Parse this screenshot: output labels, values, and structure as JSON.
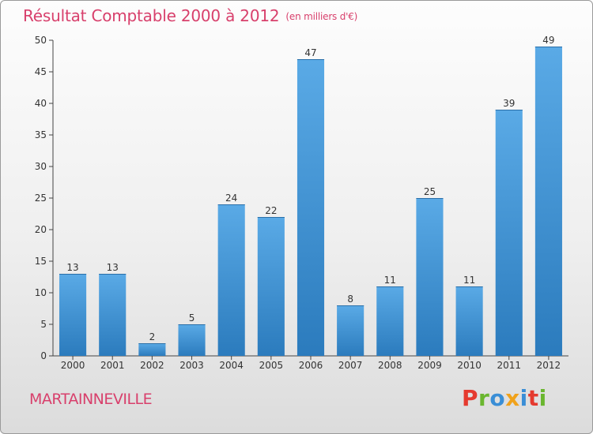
{
  "header": {
    "title": "Résultat Comptable 2000 à 2012",
    "unit": "(en milliers d'€)"
  },
  "footer": {
    "town": "MARTAINNEVILLE",
    "logo_letters": [
      "P",
      "r",
      "o",
      "x",
      "i",
      "t",
      "i"
    ],
    "logo_colors": [
      "#e53a2f",
      "#6ab62f",
      "#3a8ed6",
      "#f0a21b",
      "#3a8ed6",
      "#e53a2f",
      "#6ab62f"
    ]
  },
  "colors": {
    "title": "#d8406c",
    "bar_light": "#5aaae6",
    "bar_dark": "#2b7bbd"
  },
  "chart_data": {
    "type": "bar",
    "title": "Résultat Comptable 2000 à 2012",
    "subtitle": "(en milliers d'€)",
    "xlabel": "",
    "ylabel": "",
    "categories": [
      "2000",
      "2001",
      "2002",
      "2003",
      "2004",
      "2005",
      "2006",
      "2007",
      "2008",
      "2009",
      "2010",
      "2011",
      "2012"
    ],
    "values": [
      13,
      13,
      2,
      5,
      24,
      22,
      47,
      8,
      11,
      25,
      11,
      39,
      49
    ],
    "ylim": [
      0,
      50
    ],
    "yticks": [
      0,
      5,
      10,
      15,
      20,
      25,
      30,
      35,
      40,
      45,
      50
    ],
    "grid": false,
    "data_labels": true
  }
}
